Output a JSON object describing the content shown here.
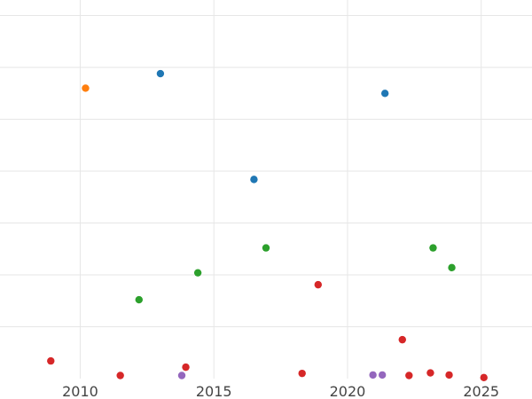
{
  "chart_data": {
    "type": "scatter",
    "title": "",
    "xlabel": "",
    "ylabel": "",
    "xlim": [
      2007.0,
      2026.9
    ],
    "ylim": [
      0,
      7.3
    ],
    "x_ticks": [
      2010,
      2015,
      2020,
      2025
    ],
    "x_tick_labels": [
      "2010",
      "2015",
      "2020",
      "2025"
    ],
    "y_gridlines": [
      1,
      2,
      3,
      4,
      5,
      6,
      7
    ],
    "grid": true,
    "legend": "none",
    "series": [
      {
        "color": "#ff7f0e",
        "points": [
          {
            "x": 2010.2,
            "y": 5.6
          }
        ]
      },
      {
        "color": "#1f77b4",
        "points": [
          {
            "x": 2013.0,
            "y": 5.88
          },
          {
            "x": 2016.5,
            "y": 3.84
          },
          {
            "x": 2021.4,
            "y": 5.5
          }
        ]
      },
      {
        "color": "#2ca02c",
        "points": [
          {
            "x": 2012.2,
            "y": 1.52
          },
          {
            "x": 2014.4,
            "y": 2.04
          },
          {
            "x": 2016.95,
            "y": 2.52
          },
          {
            "x": 2023.2,
            "y": 2.52
          },
          {
            "x": 2023.9,
            "y": 2.14
          }
        ]
      },
      {
        "color": "#d62728",
        "points": [
          {
            "x": 2008.9,
            "y": 0.34
          },
          {
            "x": 2011.5,
            "y": 0.06
          },
          {
            "x": 2013.95,
            "y": 0.22
          },
          {
            "x": 2018.3,
            "y": 0.1
          },
          {
            "x": 2018.9,
            "y": 1.81
          },
          {
            "x": 2022.05,
            "y": 0.75
          },
          {
            "x": 2022.3,
            "y": 0.06
          },
          {
            "x": 2023.1,
            "y": 0.11
          },
          {
            "x": 2023.8,
            "y": 0.07
          },
          {
            "x": 2025.1,
            "y": 0.02
          }
        ]
      },
      {
        "color": "#9467bd",
        "points": [
          {
            "x": 2013.8,
            "y": 0.06
          },
          {
            "x": 2020.95,
            "y": 0.07
          },
          {
            "x": 2021.3,
            "y": 0.07
          }
        ]
      }
    ]
  }
}
